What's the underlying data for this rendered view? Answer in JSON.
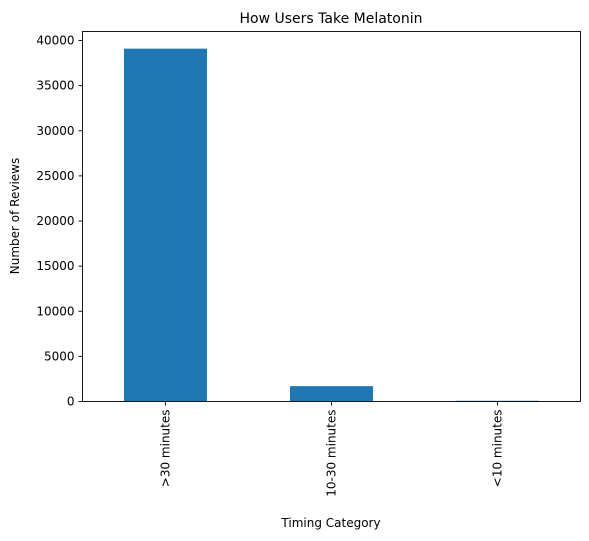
{
  "chart_data": {
    "type": "bar",
    "title": "How Users Take Melatonin",
    "xlabel": "Timing Category",
    "ylabel": "Number of Reviews",
    "categories": [
      ">30 minutes",
      "10-30 minutes",
      "<10 minutes"
    ],
    "values": [
      39100,
      1700,
      80
    ],
    "ylim": [
      0,
      41000
    ],
    "yticks": [
      0,
      5000,
      10000,
      15000,
      20000,
      25000,
      30000,
      35000,
      40000
    ],
    "grid": false,
    "legend": "none",
    "bar_color": "#1f77b4"
  }
}
